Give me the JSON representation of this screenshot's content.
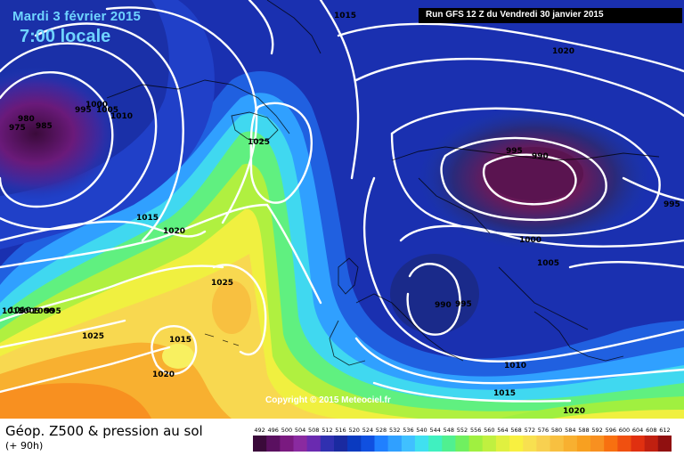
{
  "header": {
    "date": "Mardi 3 février 2015",
    "time": "7:00 locale",
    "run": "Run GFS 12 Z du Vendredi 30 janvier 2015"
  },
  "copyright": "Copyright © 2015 Meteociel.fr",
  "footer": {
    "title": "Géop. Z500 & pression au sol",
    "subtitle": "(+ 90h)"
  },
  "scale": {
    "ticks": [
      "492",
      "496",
      "500",
      "504",
      "508",
      "512",
      "516",
      "520",
      "524",
      "528",
      "532",
      "536",
      "540",
      "544",
      "548",
      "552",
      "556",
      "560",
      "564",
      "568",
      "572",
      "576",
      "580",
      "584",
      "588",
      "592",
      "596",
      "600",
      "604",
      "608",
      "612"
    ],
    "colors": [
      "#3a0a3a",
      "#5a1060",
      "#7a1a80",
      "#8a2aa0",
      "#6a2ab0",
      "#3030b0",
      "#1a2aa0",
      "#0a3ac0",
      "#1050e0",
      "#2080ff",
      "#30a0ff",
      "#40c0ff",
      "#40e0f0",
      "#40f0c0",
      "#50f090",
      "#70f060",
      "#a0f040",
      "#c0f040",
      "#e0f040",
      "#f8f040",
      "#f8e050",
      "#f8d050",
      "#f8c040",
      "#f8b030",
      "#f8a020",
      "#f89020",
      "#f87010",
      "#f05010",
      "#e03010",
      "#c02010",
      "#901010"
    ]
  },
  "isobar_labels": [
    {
      "text": "1015"
    },
    {
      "text": "1020"
    },
    {
      "text": "980"
    },
    {
      "text": "975"
    },
    {
      "text": "985"
    },
    {
      "text": "995"
    },
    {
      "text": "1000"
    },
    {
      "text": "1005"
    },
    {
      "text": "1010"
    },
    {
      "text": "1025"
    },
    {
      "text": "1015"
    },
    {
      "text": "1020"
    },
    {
      "text": "1025"
    },
    {
      "text": "995"
    },
    {
      "text": "990"
    },
    {
      "text": "1000"
    },
    {
      "text": "1005"
    },
    {
      "text": "990"
    },
    {
      "text": "995"
    },
    {
      "text": "1010"
    },
    {
      "text": "1015"
    },
    {
      "text": "1020"
    },
    {
      "text": "995"
    },
    {
      "text": "1025"
    },
    {
      "text": "1015"
    },
    {
      "text": "1020"
    },
    {
      "text": "1015"
    },
    {
      "text": "1010"
    },
    {
      "text": "1005"
    },
    {
      "text": "1000"
    },
    {
      "text": "995"
    }
  ]
}
